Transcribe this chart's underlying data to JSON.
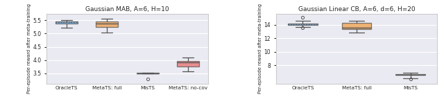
{
  "left": {
    "title": "Gaussian MAB, A=6, H=10",
    "ylabel": "Per-episode reward after meta-training",
    "categories": [
      "OracleTS",
      "MetaTS: full",
      "MisTS",
      "MetaTS: no-cov"
    ],
    "box_colors": [
      "#5b9bd5",
      "#ed9c47",
      "#5fbf5f",
      "#e87070"
    ],
    "boxes": [
      {
        "whislo": 5.21,
        "q1": 5.37,
        "med": 5.42,
        "q3": 5.46,
        "whishi": 5.52,
        "fliers": []
      },
      {
        "whislo": 5.03,
        "q1": 5.25,
        "med": 5.37,
        "q3": 5.47,
        "whishi": 5.57,
        "fliers": []
      },
      {
        "whislo": 3.495,
        "q1": 3.5,
        "med": 3.502,
        "q3": 3.505,
        "whishi": 3.52,
        "fliers": [
          3.27
        ]
      },
      {
        "whislo": 3.58,
        "q1": 3.76,
        "med": 3.9,
        "q3": 3.97,
        "whishi": 4.1,
        "fliers": []
      }
    ],
    "yticks": [
      3.5,
      4.0,
      4.5,
      5.0,
      5.5
    ],
    "ylim": [
      3.1,
      5.75
    ],
    "facecolor": "#eaeaf2"
  },
  "right": {
    "title": "Gaussian Linear CB, A=6, d=6, H=20",
    "ylabel": "Per-episode reward after meta-training",
    "categories": [
      "OracleTS",
      "MetaTS: full",
      "MisTS"
    ],
    "box_colors": [
      "#5b9bd5",
      "#ed9c47",
      "#5fbf5f"
    ],
    "boxes": [
      {
        "whislo": 13.62,
        "q1": 13.95,
        "med": 14.08,
        "q3": 14.18,
        "whishi": 14.52,
        "fliers": [
          13.55,
          15.08
        ]
      },
      {
        "whislo": 12.8,
        "q1": 13.35,
        "med": 13.5,
        "q3": 14.22,
        "whishi": 14.55,
        "fliers": []
      },
      {
        "whislo": 6.08,
        "q1": 6.58,
        "med": 6.65,
        "q3": 6.72,
        "whishi": 6.88,
        "fliers": [
          6.0
        ]
      }
    ],
    "yticks": [
      8,
      10,
      12,
      14
    ],
    "ylim": [
      5.3,
      15.6
    ],
    "facecolor": "#eaeaf2"
  }
}
